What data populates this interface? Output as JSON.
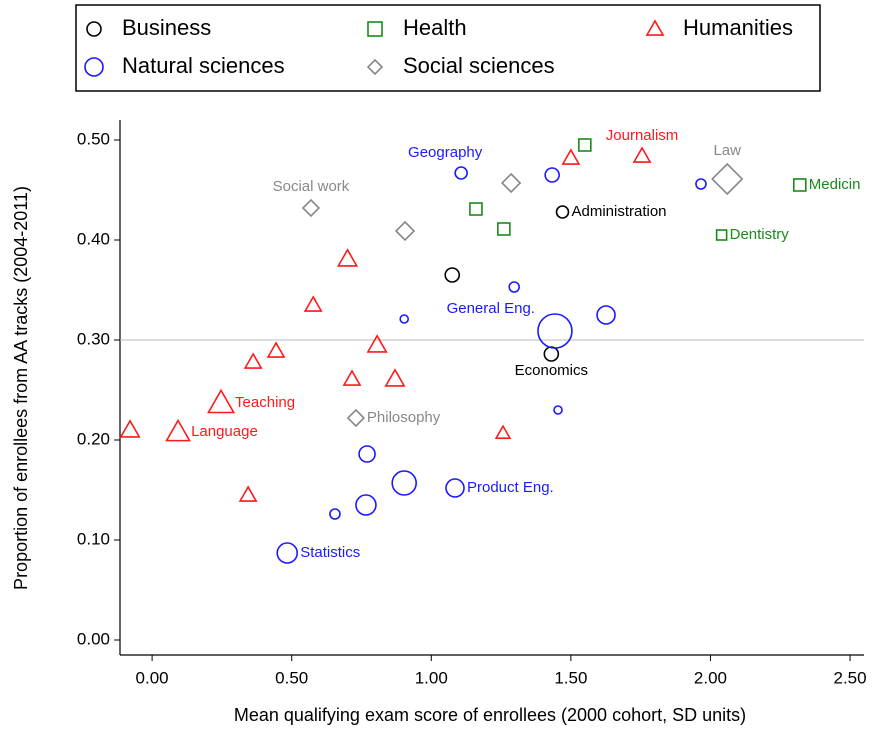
{
  "chart_data": {
    "type": "scatter",
    "x_label": "Mean qualifying exam score of enrollees (2000 cohort, SD units)",
    "y_label": "Proportion of enrollees from AA tracks (2004-2011)",
    "xlim": [
      -0.115,
      2.55
    ],
    "ylim": [
      -0.015,
      0.52
    ],
    "xticks": [
      {
        "value": 0,
        "label": "0.00"
      },
      {
        "value": 0.5,
        "label": "0.50"
      },
      {
        "value": 1,
        "label": "1.00"
      },
      {
        "value": 1.5,
        "label": "1.50"
      },
      {
        "value": 2,
        "label": "2.00"
      },
      {
        "value": 2.5,
        "label": "2.50"
      }
    ],
    "yticks": [
      {
        "value": 0,
        "label": "0.00"
      },
      {
        "value": 0.1,
        "label": "0.10"
      },
      {
        "value": 0.2,
        "label": "0.20"
      },
      {
        "value": 0.3,
        "label": "0.30"
      },
      {
        "value": 0.4,
        "label": "0.40"
      },
      {
        "value": 0.5,
        "label": "0.50"
      }
    ],
    "reference_line": 0.3,
    "series": [
      {
        "name": "Business",
        "color": "#000000",
        "marker": "circle",
        "x": [
          1.075,
          1.47,
          1.43
        ],
        "y": [
          0.365,
          0.428,
          0.286
        ],
        "sizes": [
          7,
          6,
          7
        ],
        "labels": [
          null,
          "Administration",
          "Economics"
        ],
        "label_positions": [
          null,
          "right",
          "below"
        ]
      },
      {
        "name": "Health",
        "color": "#1a8a1a",
        "marker": "square",
        "x": [
          1.55,
          1.16,
          1.26,
          2.32,
          2.04
        ],
        "y": [
          0.495,
          0.431,
          0.411,
          0.455,
          0.405
        ],
        "sizes": [
          6,
          6,
          6,
          6,
          5
        ],
        "labels": [
          null,
          null,
          null,
          "Medicin",
          "Dentistry"
        ],
        "label_positions": [
          null,
          null,
          null,
          "right",
          "right"
        ]
      },
      {
        "name": "Humanities",
        "color": "#ff1a1a",
        "marker": "triangle",
        "x": [
          1.5,
          1.755,
          0.7,
          0.577,
          0.806,
          0.444,
          0.362,
          0.716,
          0.87,
          0.247,
          -0.079,
          0.093,
          1.257,
          0.344
        ],
        "y": [
          0.482,
          0.484,
          0.381,
          0.335,
          0.295,
          0.289,
          0.278,
          0.261,
          0.261,
          0.237,
          0.21,
          0.208,
          0.207,
          0.145
        ],
        "sizes": [
          7,
          7,
          8,
          7,
          8,
          7,
          7,
          7,
          8,
          11,
          8,
          10,
          6,
          7
        ],
        "labels": [
          null,
          "Journalism",
          null,
          null,
          null,
          null,
          null,
          null,
          null,
          "Teaching",
          null,
          "Language",
          null,
          null
        ],
        "label_positions": [
          null,
          "above",
          null,
          null,
          null,
          null,
          null,
          null,
          null,
          "right",
          null,
          "right",
          null,
          null
        ]
      },
      {
        "name": "Natural sciences",
        "color": "#1a1aff",
        "marker": "circle",
        "x": [
          1.107,
          1.433,
          1.966,
          1.297,
          0.903,
          1.443,
          1.626,
          1.454,
          0.77,
          0.903,
          0.766,
          0.655,
          1.085,
          0.484
        ],
        "y": [
          0.467,
          0.465,
          0.456,
          0.353,
          0.321,
          0.309,
          0.325,
          0.23,
          0.186,
          0.157,
          0.135,
          0.126,
          0.152,
          0.087
        ],
        "sizes": [
          6,
          7,
          5,
          5,
          4,
          17,
          9,
          4,
          8,
          12,
          10,
          5,
          9,
          10
        ],
        "labels": [
          "Geography",
          null,
          null,
          null,
          null,
          "General Eng.",
          null,
          null,
          null,
          null,
          null,
          null,
          "Product Eng.",
          "Statistics"
        ],
        "label_positions": [
          "above-left",
          null,
          null,
          null,
          null,
          "left",
          null,
          null,
          null,
          null,
          null,
          null,
          "right",
          "right"
        ]
      },
      {
        "name": "Social sciences",
        "color": "#888888",
        "marker": "diamond",
        "x": [
          0.569,
          0.906,
          1.286,
          2.06,
          0.73
        ],
        "y": [
          0.432,
          0.409,
          0.457,
          0.461,
          0.222
        ],
        "sizes": [
          8,
          9,
          9,
          15,
          8
        ],
        "labels": [
          "Social work",
          null,
          null,
          "Law",
          "Philosophy"
        ],
        "label_positions": [
          "above",
          null,
          null,
          "above",
          "right"
        ]
      }
    ]
  }
}
